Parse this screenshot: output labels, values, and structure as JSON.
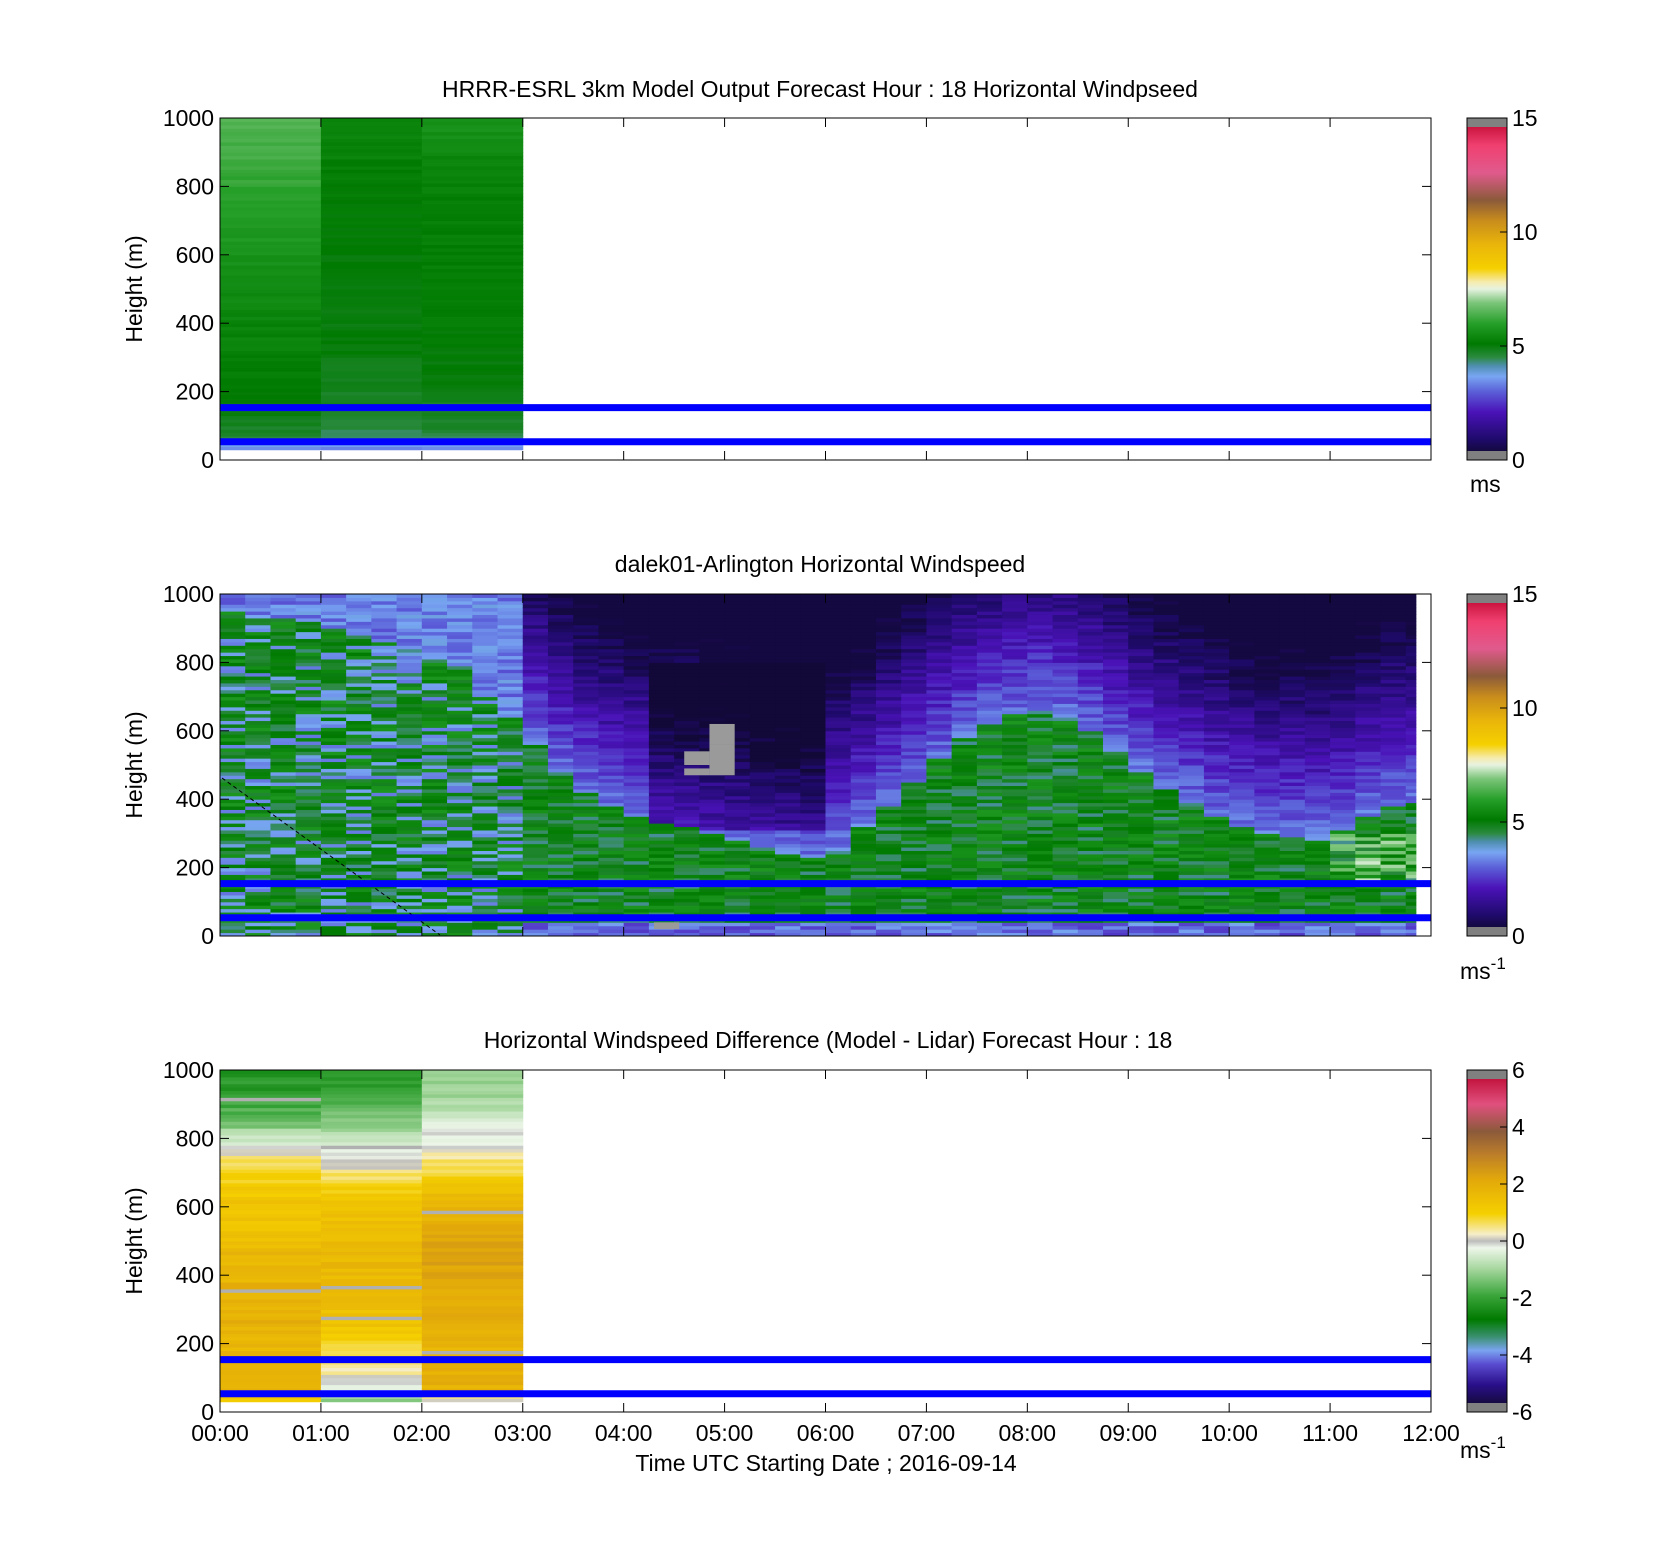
{
  "chart_data": [
    {
      "type": "heatmap",
      "title": "HRRR-ESRL 3km Model Output   Forecast Hour : 18 Horizontal Windpseed",
      "xlabel": "",
      "ylabel": "Height (m)",
      "ylim": [
        0,
        1000
      ],
      "yticks": [
        "0",
        "200",
        "400",
        "600",
        "800",
        "1000"
      ],
      "xlim_hours": [
        0,
        12
      ],
      "xticks": [],
      "data_extent_hours": [
        0,
        3
      ],
      "time_columns": [
        "00:00",
        "01:00",
        "02:00"
      ],
      "height_bins_m": [
        40,
        60,
        100,
        150,
        200,
        250,
        350,
        450,
        550,
        650,
        750,
        850,
        950
      ],
      "values": [
        [
          3.5,
          3.3,
          3.4
        ],
        [
          4.6,
          4.3,
          4.4
        ],
        [
          4.8,
          4.6,
          4.7
        ],
        [
          5.0,
          4.7,
          4.8
        ],
        [
          5.1,
          4.8,
          4.9
        ],
        [
          5.2,
          4.9,
          5.0
        ],
        [
          5.3,
          5.0,
          5.1
        ],
        [
          5.4,
          5.0,
          5.2
        ],
        [
          5.6,
          5.0,
          5.2
        ],
        [
          5.8,
          5.1,
          5.2
        ],
        [
          6.0,
          5.1,
          5.2
        ],
        [
          6.2,
          5.2,
          5.3
        ],
        [
          6.4,
          5.4,
          5.6
        ]
      ],
      "reference_lines_m": [
        50,
        150
      ],
      "colorbar": {
        "min": 0,
        "max": 15,
        "ticks": [
          "0",
          "5",
          "10",
          "15"
        ],
        "unit": "ms"
      }
    },
    {
      "type": "heatmap",
      "title": "dalek01-Arlington  Horizontal Windspeed",
      "xlabel": "",
      "ylabel": "Height (m)",
      "ylim": [
        0,
        1000
      ],
      "yticks": [
        "0",
        "200",
        "400",
        "600",
        "800",
        "1000"
      ],
      "xlim_hours": [
        0,
        12
      ],
      "xticks": [],
      "data_extent_hours": [
        0,
        11.85
      ],
      "column_width_hours": 0.25,
      "approx_boundary_layer_top_m": [
        950,
        940,
        930,
        920,
        900,
        880,
        860,
        840,
        820,
        790,
        700,
        640,
        560,
        480,
        420,
        380,
        350,
        330,
        320,
        300,
        280,
        260,
        240,
        230,
        250,
        320,
        380,
        450,
        520,
        580,
        620,
        650,
        660,
        640,
        600,
        540,
        480,
        430,
        390,
        350,
        320,
        300,
        290,
        280,
        310,
        350,
        380,
        390
      ],
      "reference_lines_m": [
        50,
        150
      ],
      "colorbar": {
        "min": 0,
        "max": 15,
        "ticks": [
          "0",
          "5",
          "10",
          "15"
        ],
        "unit_main": "ms",
        "unit_exp": "-1"
      }
    },
    {
      "type": "heatmap",
      "title": "Horizontal Windspeed Difference (Model - Lidar) Forecast Hour : 18",
      "xlabel": "Time UTC  Starting Date ; 2016-09-14",
      "ylabel": "Height (m)",
      "ylim": [
        0,
        1000
      ],
      "yticks": [
        "0",
        "200",
        "400",
        "600",
        "800",
        "1000"
      ],
      "xlim_hours": [
        0,
        12
      ],
      "xticks": [
        "00:00",
        "01:00",
        "02:00",
        "03:00",
        "04:00",
        "05:00",
        "06:00",
        "07:00",
        "08:00",
        "09:00",
        "10:00",
        "11:00",
        "12:00"
      ],
      "data_extent_hours": [
        0,
        3
      ],
      "time_columns": [
        "00:00",
        "01:00",
        "02:00"
      ],
      "height_bins_m": [
        40,
        60,
        100,
        150,
        200,
        250,
        350,
        450,
        550,
        650,
        750,
        850,
        950
      ],
      "values": [
        [
          1.2,
          -1.3,
          0.3
        ],
        [
          1.8,
          -0.4,
          1.8
        ],
        [
          2.0,
          0.2,
          2.0
        ],
        [
          1.9,
          0.7,
          1.9
        ],
        [
          1.7,
          0.9,
          1.8
        ],
        [
          1.9,
          1.2,
          2.0
        ],
        [
          1.9,
          1.6,
          2.1
        ],
        [
          1.7,
          1.7,
          2.3
        ],
        [
          1.4,
          1.6,
          1.9
        ],
        [
          1.2,
          1.0,
          1.5
        ],
        [
          0.4,
          -0.1,
          0.3
        ],
        [
          -1.5,
          -1.2,
          -0.6
        ],
        [
          -2.2,
          -2.1,
          -1.1
        ]
      ],
      "reference_lines_m": [
        50,
        150
      ],
      "colorbar": {
        "min": -6,
        "max": 6,
        "ticks": [
          "-6",
          "-4",
          "-2",
          "0",
          "2",
          "4",
          "6"
        ],
        "unit_main": "ms",
        "unit_exp": "-1"
      }
    }
  ]
}
